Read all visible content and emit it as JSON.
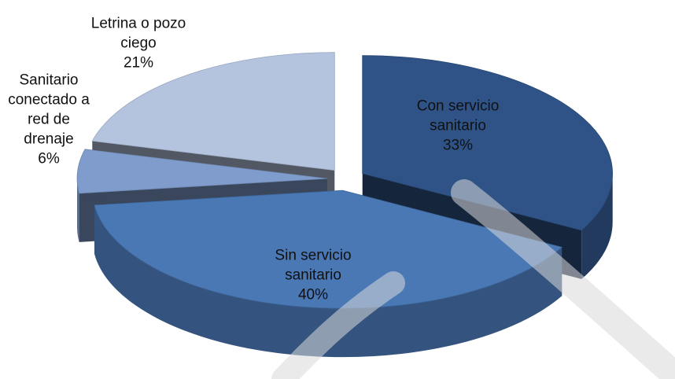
{
  "chart_data": {
    "type": "pie",
    "categories": [
      "Con servicio sanitario",
      "Sin servicio sanitario",
      "Sanitario conectado a red de drenaje",
      "Letrina o pozo ciego"
    ],
    "values": [
      33,
      40,
      6,
      21
    ],
    "value_labels": [
      "33%",
      "40%",
      "6%",
      "21%"
    ],
    "colors": [
      "#2f5386",
      "#4a78b5",
      "#7f9ccc",
      "#b4c3de"
    ]
  }
}
